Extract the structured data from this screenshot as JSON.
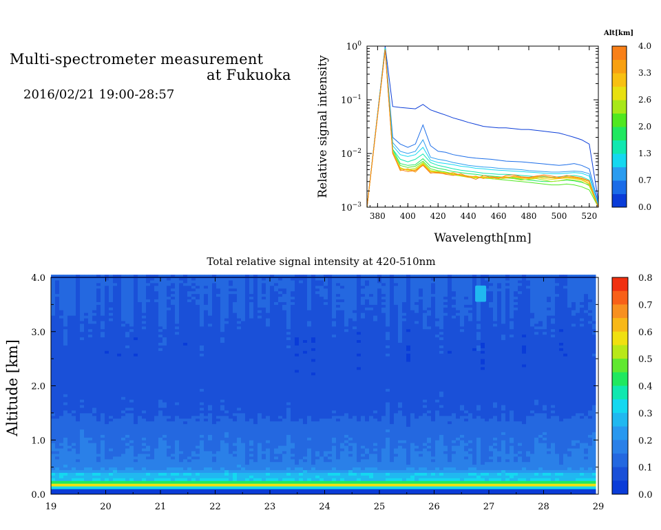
{
  "header": {
    "title_line1": "Multi-spectrometer measurement",
    "title_line2": "at Fukuoka",
    "date_range": "2016/02/21 19:00-28:57"
  },
  "chart_data": [
    {
      "type": "line",
      "xlabel": "Wavelength[nm]",
      "ylabel": "Relative signal intensity",
      "xlim": [
        373,
        526
      ],
      "ylim": [
        0.001,
        1
      ],
      "yscale": "log",
      "x_ticks": [
        380,
        400,
        420,
        440,
        460,
        480,
        500,
        520
      ],
      "y_ticks": [
        {
          "base": "10",
          "exp": "0",
          "value": 1
        },
        {
          "base": "10",
          "exp": "−1",
          "value": 0.1
        },
        {
          "base": "10",
          "exp": "−2",
          "value": 0.01
        },
        {
          "base": "10",
          "exp": "−3",
          "value": 0.001
        }
      ],
      "x": [
        373,
        385,
        390,
        395,
        400,
        405,
        410,
        415,
        420,
        425,
        430,
        435,
        440,
        445,
        450,
        455,
        460,
        465,
        470,
        475,
        480,
        485,
        490,
        495,
        500,
        505,
        510,
        515,
        520,
        526
      ],
      "series": [
        {
          "alt_km": 0.0,
          "color": "#0a3cd8",
          "values": [
            0.001,
            1.0,
            0.075,
            0.072,
            0.07,
            0.068,
            0.082,
            0.065,
            0.058,
            0.052,
            0.046,
            0.042,
            0.038,
            0.035,
            0.032,
            0.031,
            0.03,
            0.03,
            0.029,
            0.028,
            0.028,
            0.027,
            0.026,
            0.025,
            0.024,
            0.022,
            0.02,
            0.018,
            0.015,
            0.0013
          ]
        },
        {
          "alt_km": 0.35,
          "color": "#1a6ce8",
          "values": [
            0.001,
            0.95,
            0.02,
            0.015,
            0.013,
            0.015,
            0.034,
            0.014,
            0.011,
            0.0105,
            0.0095,
            0.009,
            0.0085,
            0.0082,
            0.008,
            0.0078,
            0.0075,
            0.0072,
            0.0071,
            0.007,
            0.0068,
            0.0066,
            0.0064,
            0.0062,
            0.006,
            0.0062,
            0.0065,
            0.006,
            0.0052,
            0.0012
          ]
        },
        {
          "alt_km": 0.7,
          "color": "#2a9cf0",
          "values": [
            0.001,
            0.93,
            0.016,
            0.011,
            0.01,
            0.011,
            0.018,
            0.0085,
            0.0078,
            0.0074,
            0.0068,
            0.0064,
            0.006,
            0.0058,
            0.0056,
            0.0055,
            0.0053,
            0.0052,
            0.0051,
            0.005,
            0.0048,
            0.0047,
            0.0046,
            0.0045,
            0.0045,
            0.0046,
            0.0047,
            0.0046,
            0.0042,
            0.0011
          ]
        },
        {
          "alt_km": 1.0,
          "color": "#14d8f0",
          "values": [
            0.001,
            0.92,
            0.014,
            0.0095,
            0.0088,
            0.0095,
            0.013,
            0.0075,
            0.0068,
            0.0065,
            0.0062,
            0.0058,
            0.0056,
            0.0053,
            0.0052,
            0.005,
            0.0049,
            0.0048,
            0.0047,
            0.0046,
            0.0045,
            0.0044,
            0.0043,
            0.0042,
            0.0042,
            0.0043,
            0.0044,
            0.0043,
            0.0038,
            0.0011
          ]
        },
        {
          "alt_km": 1.3,
          "color": "#10e8b0",
          "values": [
            0.001,
            0.9,
            0.012,
            0.0078,
            0.007,
            0.0078,
            0.0098,
            0.0068,
            0.006,
            0.0056,
            0.0052,
            0.0049,
            0.0047,
            0.0045,
            0.0043,
            0.0042,
            0.0041,
            0.0041,
            0.004,
            0.0039,
            0.0038,
            0.0037,
            0.0037,
            0.0036,
            0.0037,
            0.0038,
            0.0039,
            0.0037,
            0.0032,
            0.001
          ]
        },
        {
          "alt_km": 1.6,
          "color": "#20e860",
          "values": [
            0.001,
            0.88,
            0.012,
            0.0065,
            0.006,
            0.0062,
            0.008,
            0.0058,
            0.0053,
            0.005,
            0.0046,
            0.0044,
            0.0042,
            0.0041,
            0.0039,
            0.0038,
            0.0037,
            0.0036,
            0.0035,
            0.0033,
            0.0032,
            0.0031,
            0.003,
            0.003,
            0.0031,
            0.0032,
            0.0031,
            0.0029,
            0.0026,
            0.001
          ]
        },
        {
          "alt_km": 2.0,
          "color": "#50e820",
          "values": [
            0.001,
            0.87,
            0.011,
            0.006,
            0.0055,
            0.0058,
            0.0072,
            0.0052,
            0.0048,
            0.0045,
            0.0042,
            0.004,
            0.0038,
            0.0036,
            0.0035,
            0.0034,
            0.0033,
            0.0032,
            0.0031,
            0.003,
            0.0029,
            0.0028,
            0.0027,
            0.0026,
            0.0026,
            0.0027,
            0.0026,
            0.0024,
            0.0021,
            0.001
          ]
        },
        {
          "alt_km": 2.3,
          "color": "#a8e818",
          "values": [
            0.001,
            0.86,
            0.011,
            0.0052,
            0.005,
            0.0053,
            0.0068,
            0.0048,
            0.0046,
            0.0043,
            0.004,
            0.0038,
            0.0036,
            0.0035,
            0.0036,
            0.0034,
            0.0033,
            0.0035,
            0.0034,
            0.0032,
            0.0033,
            0.0034,
            0.0032,
            0.003,
            0.0031,
            0.0033,
            0.0032,
            0.003,
            0.0025,
            0.001
          ]
        },
        {
          "alt_km": 2.6,
          "color": "#e8e010",
          "values": [
            0.001,
            0.85,
            0.0105,
            0.0055,
            0.0048,
            0.005,
            0.0065,
            0.0047,
            0.0045,
            0.0044,
            0.0041,
            0.0039,
            0.0037,
            0.0036,
            0.0037,
            0.0035,
            0.0036,
            0.0037,
            0.0036,
            0.0034,
            0.0035,
            0.0036,
            0.0034,
            0.0033,
            0.0034,
            0.0036,
            0.0035,
            0.0033,
            0.0028,
            0.001
          ]
        },
        {
          "alt_km": 3.0,
          "color": "#f8c010",
          "values": [
            0.001,
            0.85,
            0.0105,
            0.0053,
            0.005,
            0.0049,
            0.0063,
            0.0046,
            0.0044,
            0.0043,
            0.0042,
            0.004,
            0.0038,
            0.0037,
            0.0035,
            0.0036,
            0.0035,
            0.0036,
            0.0037,
            0.0035,
            0.0034,
            0.0035,
            0.0036,
            0.0035,
            0.0034,
            0.0035,
            0.0034,
            0.0032,
            0.0027,
            0.001
          ]
        },
        {
          "alt_km": 3.3,
          "color": "#f8a010",
          "values": [
            0.001,
            0.84,
            0.0102,
            0.0048,
            0.0052,
            0.0045,
            0.0062,
            0.0044,
            0.0043,
            0.0042,
            0.0044,
            0.0039,
            0.0036,
            0.0038,
            0.0034,
            0.0037,
            0.0036,
            0.0035,
            0.0038,
            0.0036,
            0.0035,
            0.0037,
            0.0038,
            0.0036,
            0.0035,
            0.0037,
            0.0036,
            0.0034,
            0.003,
            0.001
          ]
        },
        {
          "alt_km": 3.7,
          "color": "#f88018",
          "values": [
            0.001,
            0.84,
            0.01,
            0.005,
            0.0046,
            0.0048,
            0.006,
            0.0043,
            0.0045,
            0.0041,
            0.0039,
            0.0042,
            0.0037,
            0.0033,
            0.0039,
            0.0036,
            0.0034,
            0.0039,
            0.004,
            0.0037,
            0.0036,
            0.0038,
            0.004,
            0.0038,
            0.0036,
            0.0039,
            0.0037,
            0.0035,
            0.0031,
            0.001
          ]
        }
      ],
      "colorbar": {
        "title": "Alt[km]",
        "labels": [
          "4.0",
          "3.3",
          "2.6",
          "2.0",
          "1.3",
          "0.7",
          "0.0"
        ],
        "colors": [
          "#0a3cd8",
          "#1a6ce8",
          "#2a9cf0",
          "#14d8f0",
          "#10e8b0",
          "#20e860",
          "#50e820",
          "#a8e818",
          "#e8e010",
          "#f8c010",
          "#f8a010",
          "#f88018"
        ]
      }
    },
    {
      "type": "heatmap",
      "title": "Total relative signal intensity at 420-510nm",
      "ylabel": "Altitude [km]",
      "xlim": [
        19,
        29
      ],
      "ylim": [
        0,
        4
      ],
      "x_ticks": [
        "19",
        "20",
        "21",
        "22",
        "23",
        "24",
        "25",
        "26",
        "27",
        "28",
        "29"
      ],
      "y_ticks": [
        "0.0",
        "1.0",
        "2.0",
        "3.0",
        "4.0"
      ],
      "data_x_range": [
        19,
        28.95
      ],
      "altitude_profile": [
        {
          "alt": 0.0,
          "value": 0.0
        },
        {
          "alt": 0.1,
          "value": 0.0
        },
        {
          "alt": 0.15,
          "value": 0.65
        },
        {
          "alt": 0.2,
          "value": 0.5
        },
        {
          "alt": 0.25,
          "value": 0.33
        },
        {
          "alt": 0.3,
          "value": 0.28
        },
        {
          "alt": 0.38,
          "value": 0.3
        },
        {
          "alt": 0.45,
          "value": 0.2
        },
        {
          "alt": 0.6,
          "value": 0.16
        },
        {
          "alt": 0.8,
          "value": 0.15
        },
        {
          "alt": 1.0,
          "value": 0.14
        },
        {
          "alt": 1.2,
          "value": 0.13
        },
        {
          "alt": 1.5,
          "value": 0.09
        },
        {
          "alt": 2.0,
          "value": 0.075
        },
        {
          "alt": 2.5,
          "value": 0.07
        },
        {
          "alt": 3.0,
          "value": 0.08
        },
        {
          "alt": 3.5,
          "value": 0.1
        },
        {
          "alt": 4.0,
          "value": 0.11
        }
      ],
      "features": [
        {
          "x": 26.85,
          "alt": 3.7,
          "value": 0.3
        }
      ],
      "colorbar": {
        "labels": [
          "0.8",
          "0.7",
          "0.6",
          "0.5",
          "0.4",
          "0.3",
          "0.2",
          "0.1",
          "0.0"
        ],
        "colors": [
          "#f03010",
          "#f86018",
          "#f89020",
          "#f8b818",
          "#f0e010",
          "#b8e818",
          "#60e830",
          "#20e860",
          "#10e8b0",
          "#14d8f0",
          "#20b8f0",
          "#2898f0",
          "#2a80e8",
          "#2468e0",
          "#1a50d8",
          "#0a3cd8"
        ]
      }
    }
  ]
}
